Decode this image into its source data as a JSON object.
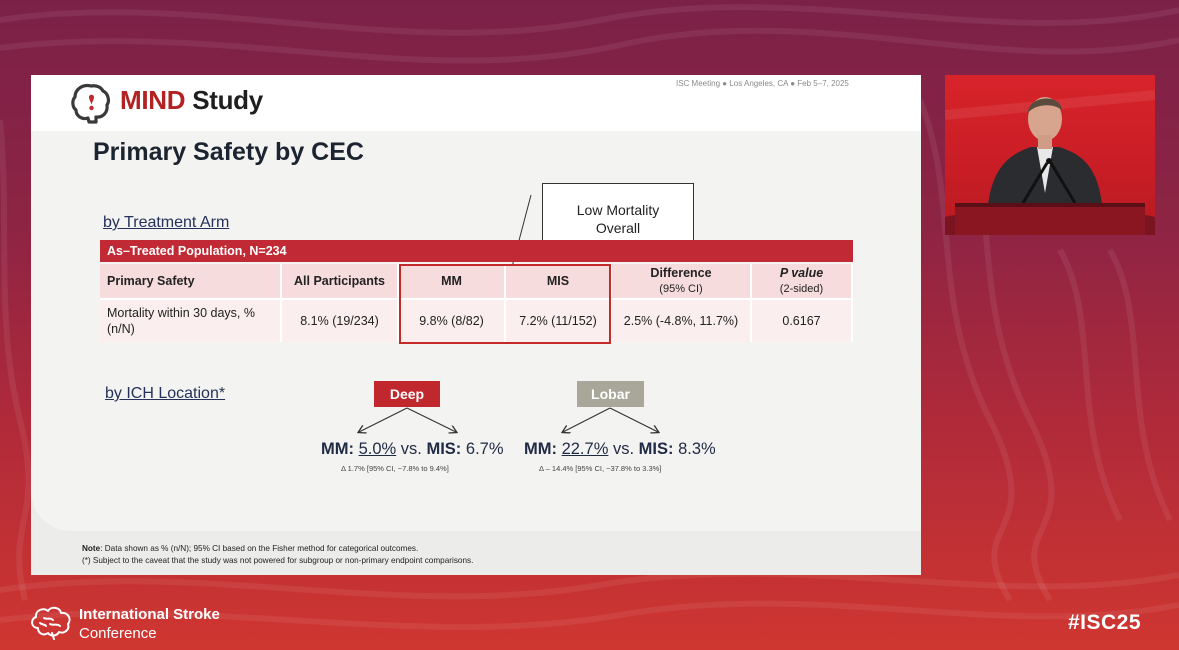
{
  "colors": {
    "accent_red": "#c12a35",
    "deep_badge": "#c0282e",
    "lobar_badge": "#a9a69a",
    "table_header_bg": "#f6dcdc",
    "table_row_bg": "#fbeeee",
    "title_navy": "#1b2430"
  },
  "slide": {
    "logo": {
      "icon": "brain-logo-icon",
      "word_mind": "MIND",
      "word_study": "Study"
    },
    "meeting_info": "ISC Meeting ● Los Angeles, CA ● Feb 5–7, 2025",
    "title": "Primary Safety by CEC",
    "section_arm": "by Treatment Arm",
    "callout": "Low Mortality\nOverall",
    "population": "As–Treated Population, N=234",
    "table": {
      "headers": [
        {
          "label": "Primary Safety",
          "sub": ""
        },
        {
          "label": "All Participants",
          "sub": ""
        },
        {
          "label": "MM",
          "sub": ""
        },
        {
          "label": "MIS",
          "sub": ""
        },
        {
          "label": "Difference",
          "sub": "(95% CI)"
        },
        {
          "label": "P value",
          "sub": "(2-sided)"
        }
      ],
      "row": [
        "Mortality within 30 days, % (n/N)",
        "8.1% (19/234)",
        "9.8% (8/82)",
        "7.2% (11/152)",
        "2.5% (-4.8%, 11.7%)",
        "0.6167"
      ]
    },
    "section_location": "by ICH Location*",
    "deep": {
      "label": "Deep",
      "mm_label": "MM:",
      "mm_value": "5.0%",
      "vs": "vs.",
      "mis_label": "MIS:",
      "mis_value": "6.7%",
      "note": "Δ  1.7% [95% CI, −7.8% to 9.4%]"
    },
    "lobar": {
      "label": "Lobar",
      "mm_label": "MM:",
      "mm_value": "22.7%",
      "vs": "vs.",
      "mis_label": "MIS:",
      "mis_value": "8.3%",
      "note": "Δ – 14.4% [95% CI, −37.8% to 3.3%]"
    },
    "footnote": {
      "note_label": "Note",
      "note_text": ": Data shown as % (n/N); 95% CI based on the Fisher method for categorical outcomes.",
      "caveat": "(*) Subject to the caveat that the study was not powered for subgroup or non-primary endpoint comparisons."
    }
  },
  "branding": {
    "conference_icon": "brain-outline-icon",
    "conference_line1": "International Stroke",
    "conference_line2": "Conference",
    "hashtag": "#ISC25"
  }
}
